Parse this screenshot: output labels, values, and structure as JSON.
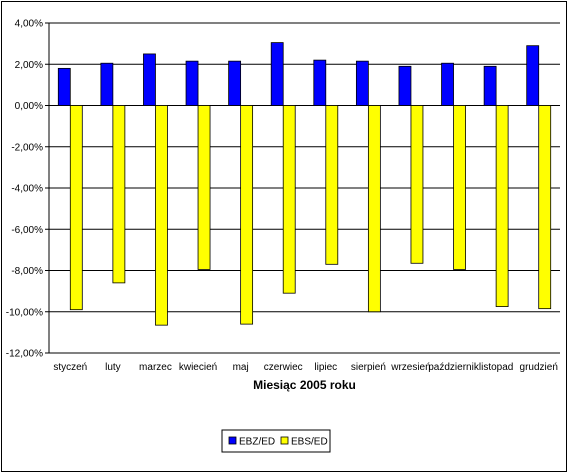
{
  "chart_data": {
    "type": "bar",
    "title": "",
    "xlabel": "Miesiąc 2005 roku",
    "ylabel": "",
    "ylim": [
      -12,
      4
    ],
    "ytick_step": 2,
    "ytick_format": "percent_comma_2",
    "grid": "horizontal",
    "legend_position": "bottom-center",
    "categories": [
      "styczeń",
      "luty",
      "marzec",
      "kwiecień",
      "maj",
      "czerwiec",
      "lipiec",
      "sierpień",
      "wrzesień",
      "październik",
      "listopad",
      "grudzień"
    ],
    "series": [
      {
        "name": "EBZ/ED",
        "color": "#0000ff",
        "values": [
          1.8,
          2.05,
          2.5,
          2.15,
          2.15,
          3.05,
          2.2,
          2.15,
          1.9,
          2.05,
          1.9,
          2.9
        ]
      },
      {
        "name": "EBS/ED",
        "color": "#ffff00",
        "values": [
          -9.9,
          -8.6,
          -10.65,
          -7.95,
          -10.6,
          -9.1,
          -7.7,
          -10.0,
          -7.65,
          -7.95,
          -9.75,
          -9.85
        ]
      }
    ]
  }
}
